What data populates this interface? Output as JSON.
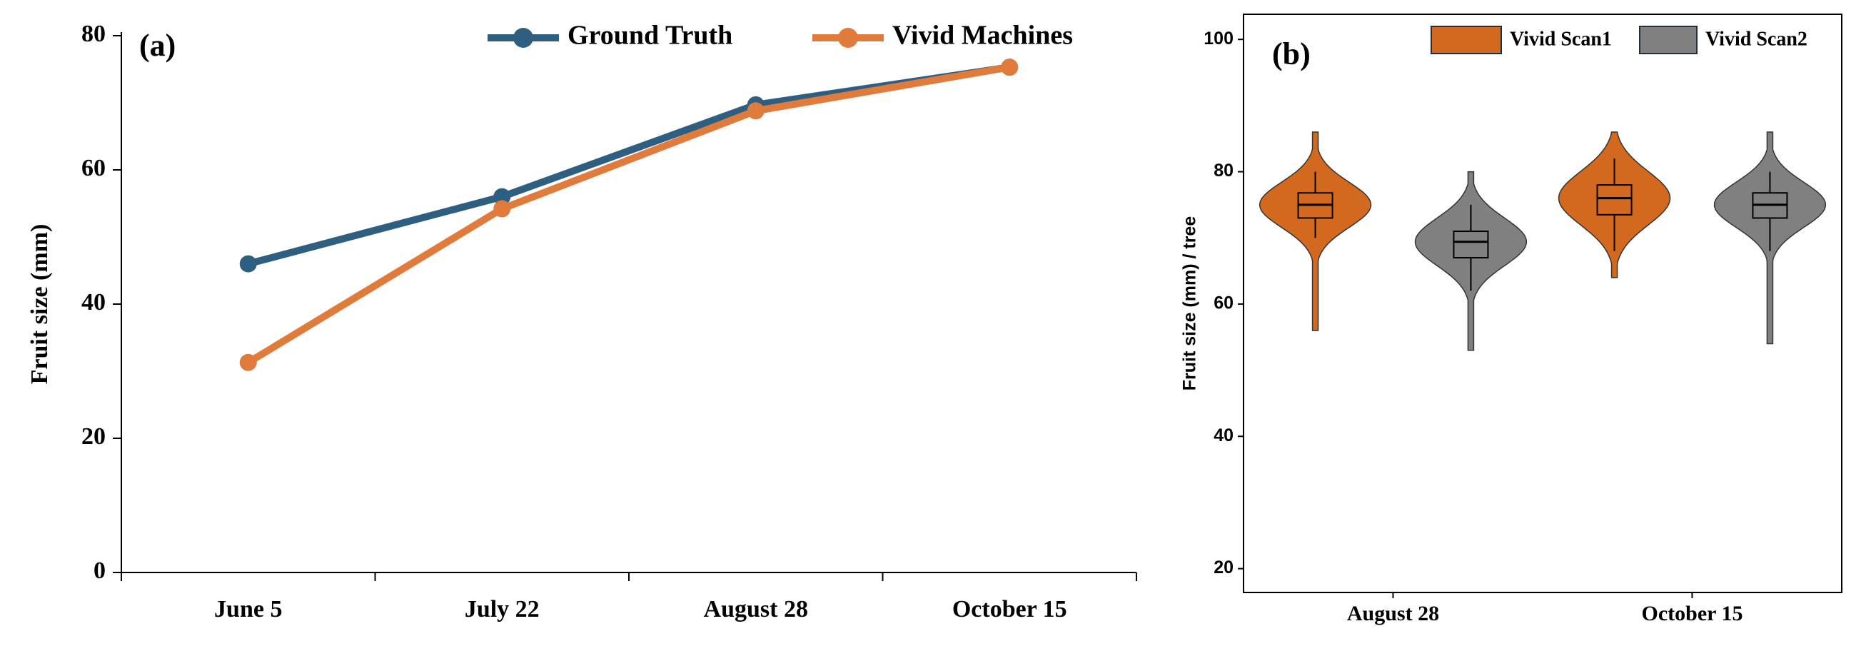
{
  "chart_data": [
    {
      "type": "line",
      "annotation": "(a)",
      "y_label": "Fruit size (mm)",
      "categories": [
        "June 5",
        "July 22",
        "August 28",
        "October 15"
      ],
      "series": [
        {
          "name": "Ground Truth",
          "color": "#2f5f80",
          "values": [
            46,
            56,
            69.7,
            75.3
          ]
        },
        {
          "name": "Vivid Machines",
          "color": "#e07b3c",
          "values": [
            31.3,
            54.2,
            68.8,
            75.3
          ]
        }
      ],
      "ylim": [
        0,
        80
      ],
      "yticks": [
        0,
        20,
        40,
        60,
        80
      ],
      "legend": "top right"
    },
    {
      "type": "violin",
      "annotation": "(b)",
      "y_label": "Fruit size (mm) / tree",
      "categories": [
        "August 28",
        "October 15"
      ],
      "series": [
        {
          "name": "Vivid Scan1",
          "color": "#d2691e",
          "median": [
            75,
            76
          ],
          "q1": [
            73,
            73.5
          ],
          "q3": [
            76.8,
            78
          ],
          "whisker_low": [
            70,
            68
          ],
          "whisker_high": [
            80,
            82
          ],
          "min": [
            56,
            64
          ],
          "max": [
            86,
            86
          ]
        },
        {
          "name": "Vivid Scan2",
          "color": "#808080",
          "median": [
            69.4,
            75
          ],
          "q1": [
            67,
            73
          ],
          "q3": [
            71,
            76.8
          ],
          "whisker_low": [
            62,
            68
          ],
          "whisker_high": [
            75,
            80
          ],
          "min": [
            53,
            54
          ],
          "max": [
            80,
            86
          ]
        }
      ],
      "ylim": [
        16.4,
        103.8
      ],
      "yticks": [
        20,
        40,
        60,
        80,
        100
      ],
      "legend": "top right"
    }
  ]
}
